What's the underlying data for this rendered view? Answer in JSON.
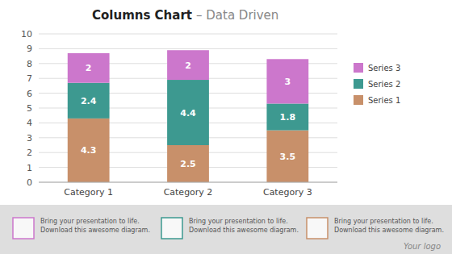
{
  "chart_data": {
    "type": "bar",
    "stacked": true,
    "title": "Columns Chart",
    "subtitle": "– Data Driven",
    "categories": [
      "Category 1",
      "Category 2",
      "Category 3"
    ],
    "series": [
      {
        "name": "Series 1",
        "color": "#c8906a",
        "values": [
          4.3,
          2.5,
          3.5
        ]
      },
      {
        "name": "Series 2",
        "color": "#3d9990",
        "values": [
          2.4,
          4.4,
          1.8
        ]
      },
      {
        "name": "Series 3",
        "color": "#cc77cc",
        "values": [
          2,
          2,
          3
        ]
      }
    ],
    "ylim": [
      0,
      10
    ],
    "yticks": [
      0,
      1,
      2,
      3,
      4,
      5,
      6,
      7,
      8,
      9,
      10
    ],
    "grid": true,
    "legend": "right",
    "data_labels": true,
    "annotations": [
      {
        "text": "Bring your presentation to life.\nDownload this awesome diagram.",
        "color": "#cc77cc"
      },
      {
        "text": "Bring your presentation to life.\nDownload this awesome diagram.",
        "color": "#3d9990"
      },
      {
        "text": "Bring your presentation to life.\nDownload this awesome diagram.",
        "color": "#c8906a"
      },
      {
        "text": "Your logo"
      }
    ]
  }
}
